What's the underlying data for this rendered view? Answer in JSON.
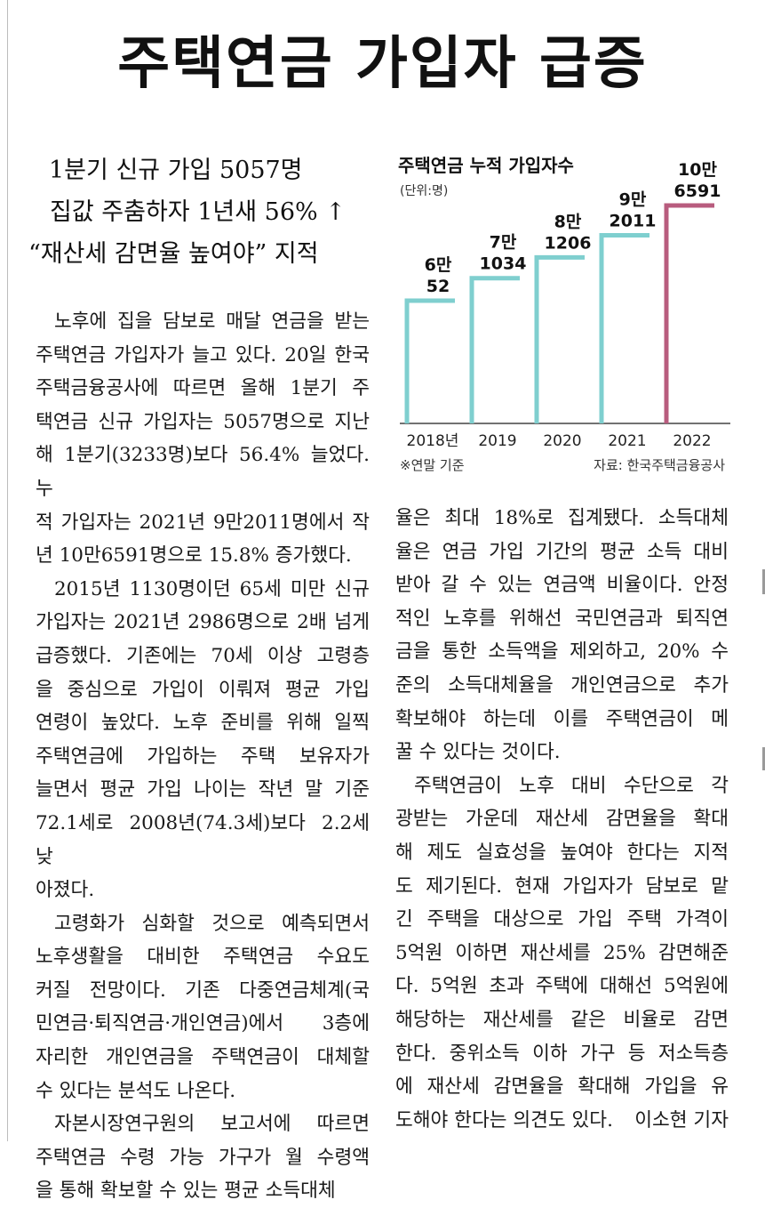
{
  "headline": "주택연금 가입자 급증",
  "subheads": [
    "1분기 신규 가입 5057명",
    "집값 주춤하자 1년새 56% ↑",
    "“재산세 감면율 높여야” 지적"
  ],
  "chart_data": {
    "type": "bar",
    "title": "주택연금 누적 가입자수",
    "unit": "(단위:명)",
    "categories": [
      "2018년",
      "2019",
      "2020",
      "2021",
      "2022"
    ],
    "values": [
      60052,
      71034,
      81206,
      92011,
      106591
    ],
    "value_labels": [
      [
        "6만",
        "52"
      ],
      [
        "7만",
        "1034"
      ],
      [
        "8만",
        "1206"
      ],
      [
        "9만",
        "2011"
      ],
      [
        "10만",
        "6591"
      ]
    ],
    "colors": [
      "#7fcfcf",
      "#7fcfcf",
      "#7fcfcf",
      "#7fcfcf",
      "#b85c7e"
    ],
    "note": "※연말 기준",
    "source": "자료: 한국주택금융공사"
  },
  "left_column": [
    [
      "노후에 집을 담보로 매달 연금을 받는",
      "주택연금 가입자가 늘고 있다. 20일 한국",
      "주택금융공사에 따르면 올해 1분기 주",
      "택연금 신규 가입자는 5057명으로 지난",
      "해 1분기(3233명)보다 56.4% 늘었다. 누",
      "적 가입자는 2021년 9만2011명에서 작",
      "년 10만6591명으로 15.8% 증가했다."
    ],
    [
      "2015년 1130명이던 65세 미만 신규",
      "가입자는 2021년 2986명으로 2배 넘게",
      "급증했다. 기존에는 70세 이상 고령층",
      "을 중심으로 가입이 이뤄져 평균 가입",
      "연령이 높았다. 노후 준비를 위해 일찍",
      "주택연금에 가입하는 주택 보유자가",
      "늘면서 평균 가입 나이는 작년 말 기준",
      "72.1세로 2008년(74.3세)보다 2.2세 낮",
      "아졌다."
    ],
    [
      "고령화가 심화할 것으로 예측되면서",
      "노후생활을 대비한 주택연금 수요도",
      "커질 전망이다. 기존 다중연금체계(국",
      "민연금·퇴직연금·개인연금)에서 3층에",
      "자리한 개인연금을 주택연금이 대체할",
      "수 있다는 분석도 나온다."
    ],
    [
      "자본시장연구원의 보고서에 따르면",
      "주택연금 수령 가능 가구가 월 수령액",
      "을 통해 확보할 수 있는 평균 소득대체"
    ]
  ],
  "right_column": [
    [
      "율은 최대 18%로 집계됐다. 소득대체",
      "율은 연금 가입 기간의 평균 소득 대비",
      "받아 갈 수 있는 연금액 비율이다. 안정",
      "적인 노후를 위해선 국민연금과 퇴직연",
      "금을 통한 소득액을 제외하고, 20% 수",
      "준의 소득대체율을 개인연금으로 추가",
      "확보해야 하는데 이를 주택연금이 메",
      "꿀 수 있다는 것이다."
    ],
    [
      "주택연금이 노후 대비 수단으로 각",
      "광받는 가운데 재산세 감면율을 확대",
      "해 제도 실효성을 높여야 한다는 지적",
      "도 제기된다. 현재 가입자가 담보로 맡",
      "긴 주택을 대상으로 가입 주택 가격이",
      "5억원 이하면 재산세를 25% 감면해준",
      "다. 5억원 초과 주택에 대해선 5억원에",
      "해당하는 재산세를 같은 비율로 감면",
      "한다. 중위소득 이하 가구 등 저소득층",
      "에 재산세 감면율을 확대해 가입을 유",
      "도해야 한다는 의견도 있다."
    ]
  ],
  "byline": "이소현 기자"
}
